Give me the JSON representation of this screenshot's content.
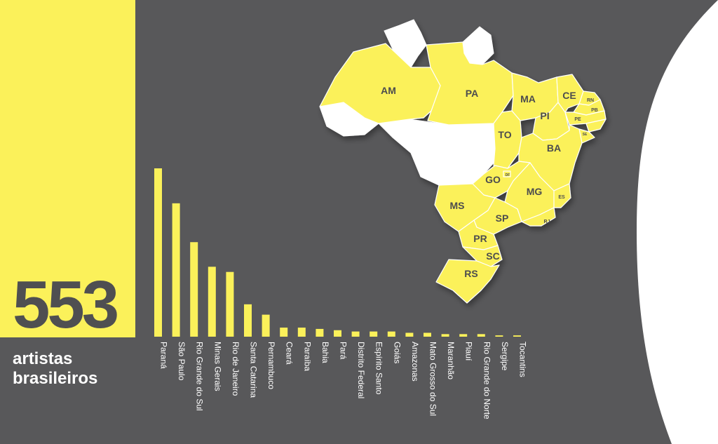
{
  "headline": {
    "count": "553",
    "line1": "artistas",
    "line2": "brasileiros"
  },
  "colors": {
    "background": "#58585a",
    "accent_yellow": "#fbf15a",
    "text_dark": "#4f4f51",
    "text_light": "#ffffff"
  },
  "chart_data": {
    "type": "bar",
    "title": "",
    "xlabel": "",
    "ylabel": "",
    "categories": [
      "Paraná",
      "São Paulo",
      "Rio Grande do Sul",
      "Minas Gerais",
      "Rio de Janeiro",
      "Santa Catarina",
      "Pernambuco",
      "Ceará",
      "Paraíba",
      "Bahia",
      "Pará",
      "Distrito Federal",
      "Espírito Santo",
      "Goiás",
      "Amazonas",
      "Mato Grosso do Sul",
      "Maranhão",
      "Piauí",
      "Rio Grande do Norte",
      "Sergipe",
      "Tocantins"
    ],
    "values": [
      130,
      103,
      73,
      54,
      50,
      25,
      17,
      7,
      7,
      6,
      5,
      4,
      4,
      4,
      3,
      3,
      2,
      2,
      2,
      1,
      1
    ],
    "ylim": [
      0,
      130
    ],
    "grid": false
  },
  "map": {
    "state_labels": [
      "AM",
      "PA",
      "MA",
      "CE",
      "RN",
      "PB",
      "PE",
      "PI",
      "SE",
      "TO",
      "BA",
      "GO",
      "DF",
      "MG",
      "ES",
      "MS",
      "SP",
      "RJ",
      "PR",
      "SC",
      "RS"
    ]
  }
}
